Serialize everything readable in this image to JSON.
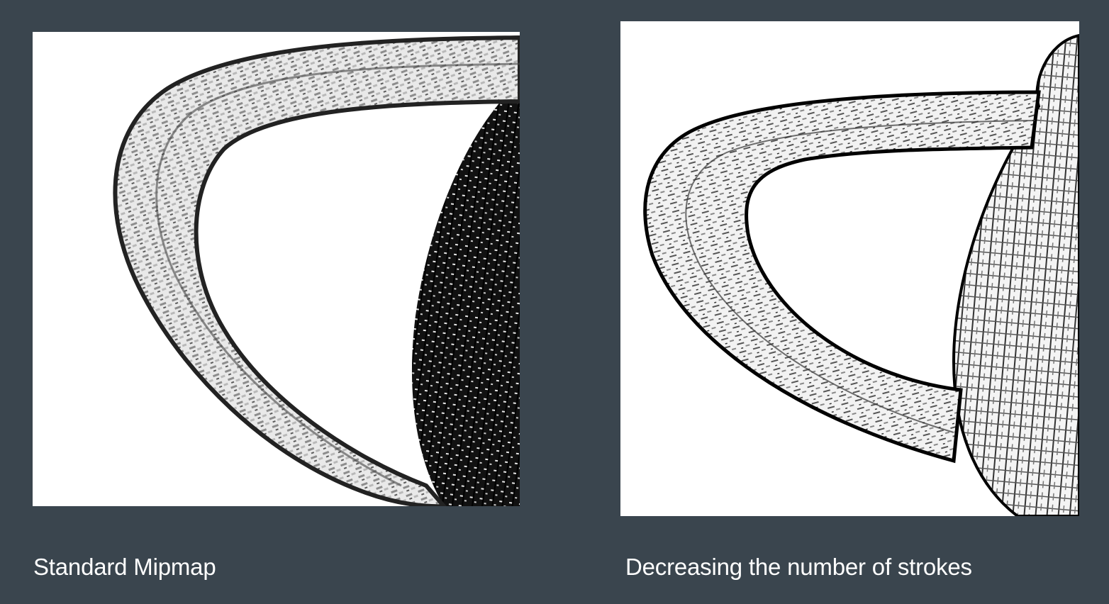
{
  "background_color": "#3a454e",
  "panels": [
    {
      "caption": "Standard Mipmap",
      "image_subject": "hatched-teapot-handle-mipmap"
    },
    {
      "caption": "Decreasing the number of strokes",
      "image_subject": "hatched-teapot-handle-fewer-strokes"
    }
  ]
}
